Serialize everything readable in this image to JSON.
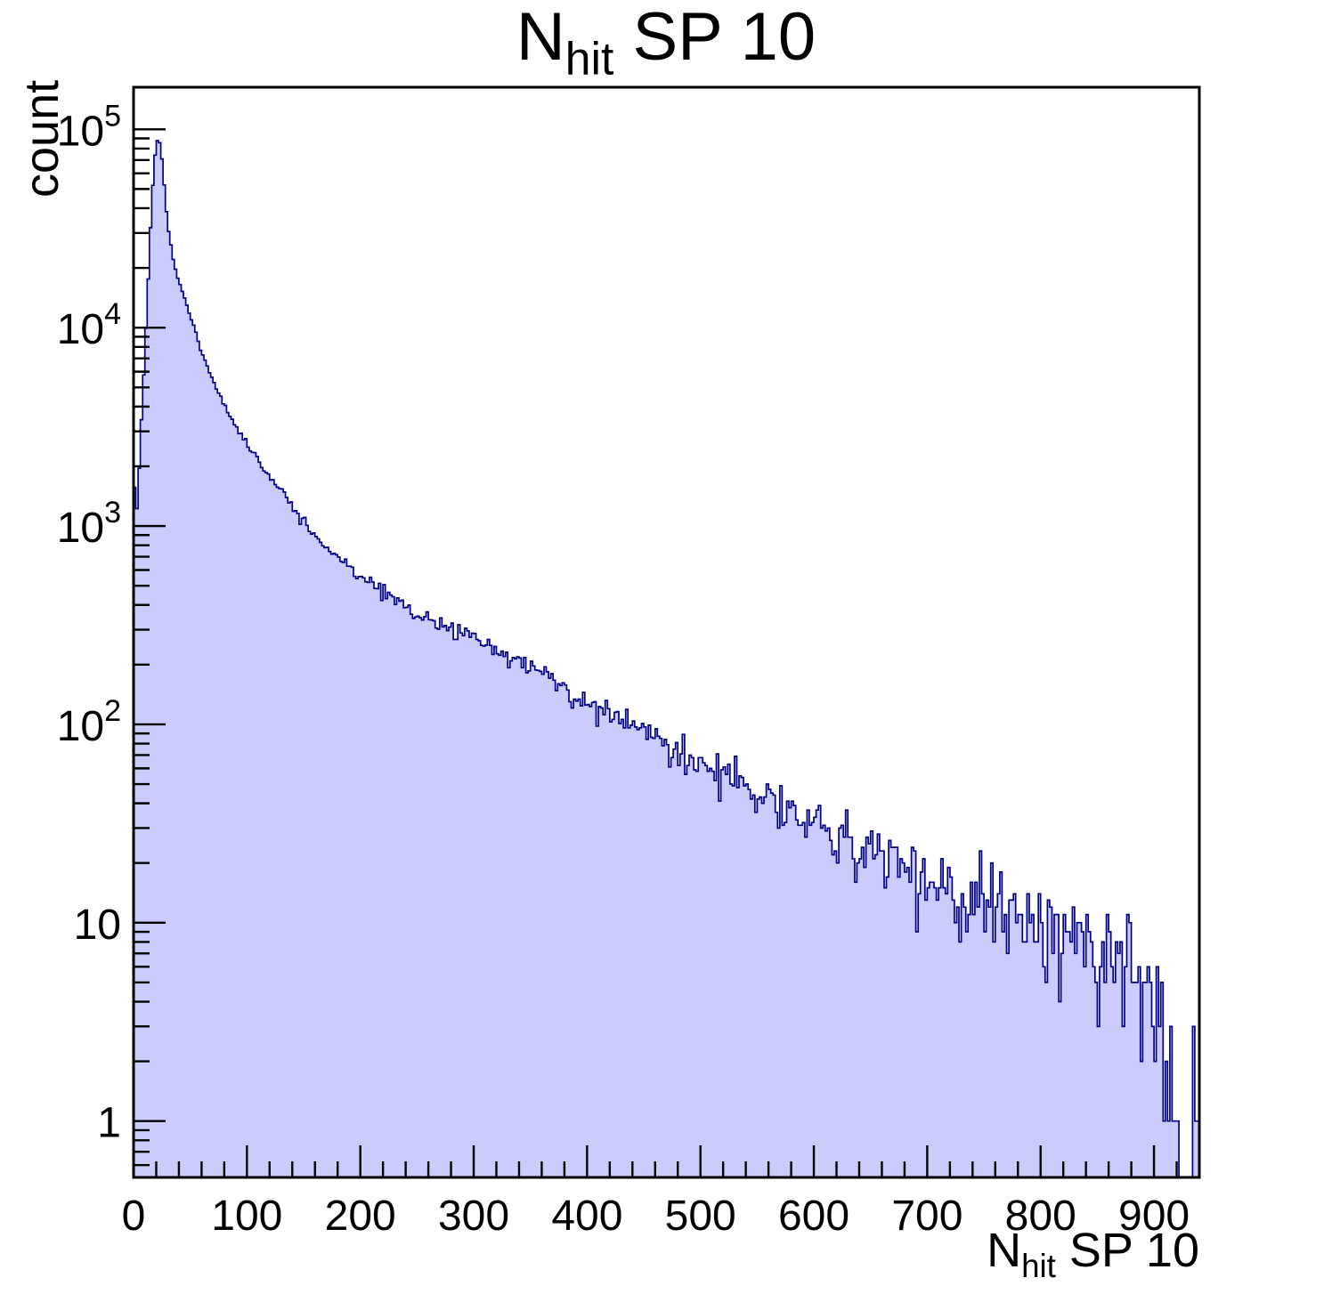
{
  "chart_data": {
    "type": "bar",
    "subtype": "histogram-log-y",
    "title": {
      "main": "N",
      "sub": "hit",
      "rest": " SP 10"
    },
    "xlabel": {
      "main": "N",
      "sub": "hit",
      "rest": " SP 10"
    },
    "ylabel": "count",
    "x_min": 0,
    "x_max": 940,
    "bin_width": 2,
    "y_scale": "log",
    "y_min": 0.52,
    "y_max": 163000,
    "grid": false,
    "legend": "none",
    "x_major_tick_step": 100,
    "x_minor_tick_step": 20,
    "x_tick_labels": [
      "0",
      "100",
      "200",
      "300",
      "400",
      "500",
      "600",
      "700",
      "800",
      "900"
    ],
    "y_decade_exponents": [
      0,
      1,
      2,
      3,
      4,
      5
    ],
    "peak": {
      "x": 21,
      "count": 90000
    },
    "first_bin_count": 2600,
    "anchors": [
      [
        0,
        2600
      ],
      [
        2,
        1000
      ],
      [
        4,
        1600
      ],
      [
        6,
        2600
      ],
      [
        8,
        4600
      ],
      [
        10,
        7500
      ],
      [
        12,
        13000
      ],
      [
        14,
        24000
      ],
      [
        16,
        42000
      ],
      [
        18,
        65000
      ],
      [
        20,
        85000
      ],
      [
        22,
        90000
      ],
      [
        24,
        82000
      ],
      [
        26,
        61000
      ],
      [
        28,
        45000
      ],
      [
        30,
        33000
      ],
      [
        35,
        22000
      ],
      [
        40,
        17000
      ],
      [
        45,
        14000
      ],
      [
        50,
        11500
      ],
      [
        60,
        7600
      ],
      [
        70,
        5400
      ],
      [
        80,
        4100
      ],
      [
        90,
        3200
      ],
      [
        100,
        2600
      ],
      [
        110,
        2150
      ],
      [
        120,
        1800
      ],
      [
        130,
        1500
      ],
      [
        140,
        1250
      ],
      [
        150,
        1050
      ],
      [
        160,
        900
      ],
      [
        170,
        790
      ],
      [
        180,
        700
      ],
      [
        190,
        620
      ],
      [
        200,
        560
      ],
      [
        220,
        460
      ],
      [
        240,
        400
      ],
      [
        260,
        340
      ],
      [
        280,
        300
      ],
      [
        300,
        270
      ],
      [
        320,
        235
      ],
      [
        340,
        205
      ],
      [
        360,
        178
      ],
      [
        380,
        152
      ],
      [
        400,
        130
      ],
      [
        420,
        114
      ],
      [
        440,
        100
      ],
      [
        460,
        88
      ],
      [
        480,
        74
      ],
      [
        500,
        62
      ],
      [
        520,
        55
      ],
      [
        540,
        49
      ],
      [
        560,
        42
      ],
      [
        580,
        36
      ],
      [
        600,
        31
      ],
      [
        620,
        27
      ],
      [
        640,
        24
      ],
      [
        660,
        21
      ],
      [
        680,
        18
      ],
      [
        700,
        16
      ],
      [
        720,
        14.5
      ],
      [
        740,
        13
      ],
      [
        760,
        12
      ],
      [
        780,
        11
      ],
      [
        800,
        10
      ],
      [
        820,
        9
      ],
      [
        840,
        8.2
      ],
      [
        860,
        7
      ],
      [
        880,
        5.5
      ],
      [
        900,
        3.5
      ],
      [
        910,
        2.2
      ],
      [
        920,
        1.4
      ],
      [
        930,
        1.0
      ],
      [
        940,
        1.2
      ]
    ],
    "noise_seed": 11,
    "colors": {
      "fill": "#ccccfc",
      "line": "#000087",
      "axis": "#000000",
      "background": "#ffffff"
    }
  }
}
